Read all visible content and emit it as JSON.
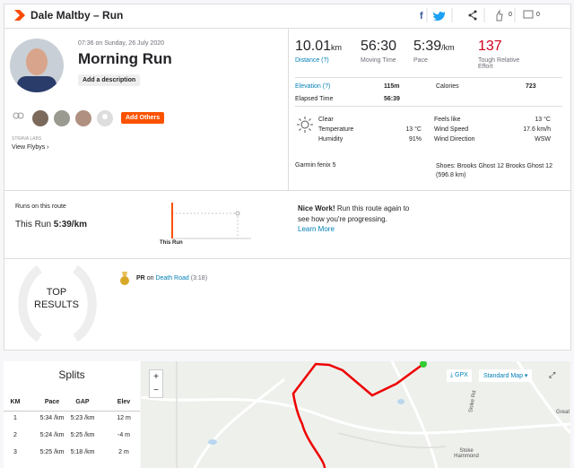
{
  "header": {
    "activity": "Dale Maltby – Run",
    "kudos": "0",
    "comments": "0"
  },
  "summary": {
    "datetime": "07:36 on Sunday, 26 July 2020",
    "title": "Morning Run",
    "add_description": "Add a description",
    "add_others": "Add Others",
    "labs": "STRAVA LABS",
    "flybys": "View Flybys"
  },
  "stats": [
    {
      "value": "10.01",
      "unit": "km",
      "label": "Distance (?)"
    },
    {
      "value": "56:30",
      "label": "Moving Time"
    },
    {
      "value": "5:39",
      "unit": "/km",
      "label": "Pace"
    },
    {
      "value": "137",
      "label": "Tough Relative Effort"
    }
  ],
  "details": {
    "elevation_label": "Elevation (?)",
    "elevation": "115m",
    "calories_label": "Calories",
    "calories": "723",
    "elapsed_label": "Elapsed Time",
    "elapsed": "56:39"
  },
  "weather": {
    "left": [
      {
        "label": "Clear"
      },
      {
        "label": "Temperature",
        "value": "13 °C"
      },
      {
        "label": "Humidity",
        "value": "91%"
      }
    ],
    "right": [
      {
        "label": "Feels like",
        "value": "13 °C"
      },
      {
        "label": "Wind Speed",
        "value": "17.6 km/h"
      },
      {
        "label": "Wind Direction",
        "value": "WSW"
      }
    ]
  },
  "device": "Garmin fenix 5",
  "shoes": "Shoes: Brooks Ghost 12 Brooks Ghost 12 (596.8 km)",
  "route": {
    "heading": "Runs on this route",
    "this_run": "This Run",
    "pace": "5:39/km",
    "bar_label": "This Run",
    "nice": "Nice Work!",
    "message": "Run this route again to see how you're progressing.",
    "learn_more": "Learn More"
  },
  "results": {
    "title": [
      "TOP",
      "RESULTS"
    ],
    "pr": "PR",
    "on": "on",
    "segment": "Death Road",
    "time": "(3:18)"
  },
  "splits": {
    "title": "Splits",
    "columns": [
      "KM",
      "Pace",
      "GAP",
      "Elev"
    ],
    "rows": [
      [
        "1",
        "5:34 /km",
        "5:23 /km",
        "12 m"
      ],
      [
        "2",
        "5:24 /km",
        "5:25 /km",
        "-4 m"
      ],
      [
        "3",
        "5:25 /km",
        "5:18 /km",
        "2 m"
      ]
    ]
  },
  "map": {
    "zoom_in": "+",
    "zoom_out": "−",
    "gpx": "GPX",
    "map_type": "Standard Map",
    "labels": [
      "Stoke Rd",
      "Stoke Hammond",
      "Great"
    ]
  }
}
